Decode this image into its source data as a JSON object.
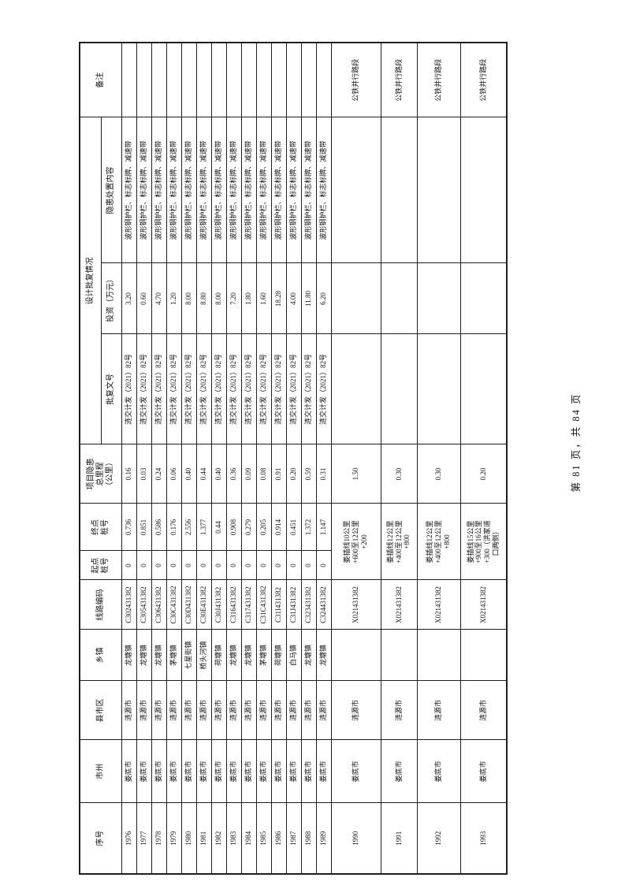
{
  "page": {
    "footer": "第 81 页，共 84 页"
  },
  "table": {
    "headers": {
      "xuhao": "序号",
      "shizhou": "市州",
      "xianshiqu": "县市区",
      "xiangzhen": "乡镇",
      "xianlu": "线路编码",
      "qidian": "起点\n桩号",
      "zhongdian": "终点\n桩号",
      "licheng": "项目隐患\n总里程\n（公里）",
      "sheji": "设计批复情况",
      "pifu": "批复文号",
      "touzi": "投资（万元）",
      "yinhuan": "隐患处置内容",
      "beizhu": "备注"
    },
    "rows": [
      {
        "no": "1976",
        "city": "娄底市",
        "county": "涟源市",
        "town": "龙塘镇",
        "code": "C302431382",
        "start": "0",
        "end": "0.736",
        "mileage": "0.16",
        "doc": "涟交计发（2021）82号",
        "invest": "3.20",
        "content": "波形钢护栏、标志标牌、减速带",
        "note": ""
      },
      {
        "no": "1977",
        "city": "娄底市",
        "county": "涟源市",
        "town": "龙塘镇",
        "code": "C305431382",
        "start": "0",
        "end": "0.851",
        "mileage": "0.03",
        "doc": "涟交计发（2021）82号",
        "invest": "0.60",
        "content": "波形钢护栏、标志标牌、减速带",
        "note": ""
      },
      {
        "no": "1978",
        "city": "娄底市",
        "county": "涟源市",
        "town": "龙塘镇",
        "code": "C306431382",
        "start": "0",
        "end": "0.586",
        "mileage": "0.24",
        "doc": "涟交计发（2021）82号",
        "invest": "4.70",
        "content": "波形钢护栏、标志标牌、减速带",
        "note": ""
      },
      {
        "no": "1979",
        "city": "娄底市",
        "county": "涟源市",
        "town": "茅塘镇",
        "code": "C30C431382",
        "start": "0",
        "end": "0.176",
        "mileage": "0.06",
        "doc": "涟交计发（2021）82号",
        "invest": "1.20",
        "content": "波形钢护栏、标志标牌、减速带",
        "note": ""
      },
      {
        "no": "1980",
        "city": "娄底市",
        "county": "涟源市",
        "town": "七星街镇",
        "code": "C30D431382",
        "start": "0",
        "end": "2.556",
        "mileage": "0.40",
        "doc": "涟交计发（2021）82号",
        "invest": "8.00",
        "content": "波形钢护栏、标志标牌、减速带",
        "note": ""
      },
      {
        "no": "1981",
        "city": "娄底市",
        "county": "涟源市",
        "town": "桥头河镇",
        "code": "C30E431382",
        "start": "0",
        "end": "1.377",
        "mileage": "0.44",
        "doc": "涟交计发（2021）82号",
        "invest": "8.80",
        "content": "波形钢护栏、标志标牌、减速带",
        "note": ""
      },
      {
        "no": "1982",
        "city": "娄底市",
        "county": "涟源市",
        "town": "荷塘镇",
        "code": "C30J431382",
        "start": "0",
        "end": "0.44",
        "mileage": "0.40",
        "doc": "涟交计发（2021）82号",
        "invest": "8.00",
        "content": "波形钢护栏、标志标牌、减速带",
        "note": ""
      },
      {
        "no": "1983",
        "city": "娄底市",
        "county": "涟源市",
        "town": "龙塘镇",
        "code": "C316431382",
        "start": "0",
        "end": "0.908",
        "mileage": "0.36",
        "doc": "涟交计发（2021）82号",
        "invest": "7.20",
        "content": "波形钢护栏、标志标牌、减速带",
        "note": ""
      },
      {
        "no": "1984",
        "city": "娄底市",
        "county": "涟源市",
        "town": "龙塘镇",
        "code": "C317431382",
        "start": "0",
        "end": "0.279",
        "mileage": "0.09",
        "doc": "涟交计发（2021）82号",
        "invest": "1.80",
        "content": "波形钢护栏、标志标牌、减速带",
        "note": ""
      },
      {
        "no": "1985",
        "city": "娄底市",
        "county": "涟源市",
        "town": "茅塘镇",
        "code": "C31C431382",
        "start": "0",
        "end": "0.205",
        "mileage": "0.08",
        "doc": "涟交计发（2021）82号",
        "invest": "1.60",
        "content": "波形钢护栏、标志标牌、减速带",
        "note": ""
      },
      {
        "no": "1986",
        "city": "娄底市",
        "county": "涟源市",
        "town": "荷塘镇",
        "code": "C31I431382",
        "start": "0",
        "end": "0.914",
        "mileage": "0.91",
        "doc": "涟交计发（2021）82号",
        "invest": "18.28",
        "content": "波形钢护栏、标志标牌、减速带",
        "note": ""
      },
      {
        "no": "1987",
        "city": "娄底市",
        "county": "涟源市",
        "town": "白马镇",
        "code": "C31J431382",
        "start": "0",
        "end": "0.451",
        "mileage": "0.20",
        "doc": "涟交计发（2021）82号",
        "invest": "4.00",
        "content": "波形钢护栏、标志标牌、减速带",
        "note": ""
      },
      {
        "no": "1988",
        "city": "娄底市",
        "county": "涟源市",
        "town": "龙塘镇",
        "code": "C323431382",
        "start": "0",
        "end": "1.372",
        "mileage": "0.59",
        "doc": "涟交计发（2021）82号",
        "invest": "11.80",
        "content": "波形钢护栏、标志标牌、减速带",
        "note": ""
      },
      {
        "no": "1989",
        "city": "娄底市",
        "county": "涟源市",
        "town": "龙塘镇",
        "code": "C324431382",
        "start": "0",
        "end": "1.147",
        "mileage": "0.31",
        "doc": "涟交计发（2021）82号",
        "invest": "6.20",
        "content": "波形钢护栏、标志标牌、减速带",
        "note": ""
      },
      {
        "no": "1990",
        "city": "娄底市",
        "county": "涟源市",
        "town": "",
        "code": "X021431382",
        "chainage": "娄插线10公里\n+600至12公里\n+200",
        "mileage": "1.50",
        "doc": "",
        "invest": "",
        "content": "",
        "note": "公铁并行路段"
      },
      {
        "no": "1991",
        "city": "娄底市",
        "county": "涟源市",
        "town": "",
        "code": "X021431382",
        "chainage": "娄插线12公里\n+400至12公里\n+800",
        "mileage": "0.30",
        "doc": "",
        "invest": "",
        "content": "",
        "note": "公铁并行路段"
      },
      {
        "no": "1992",
        "city": "娄底市",
        "county": "涟源市",
        "town": "",
        "code": "X021431382",
        "chainage": "娄插线12公里\n+400至12公里\n+800",
        "mileage": "0.30",
        "doc": "",
        "invest": "",
        "content": "",
        "note": "公铁并行路段"
      },
      {
        "no": "1993",
        "city": "娄底市",
        "county": "涟源市",
        "town": "",
        "code": "X021431382",
        "chainage": "娄插线15公里\n+900至16公里\n+300（洪家道\n口两侧）",
        "mileage": "0.20",
        "doc": "",
        "invest": "",
        "content": "",
        "note": "公铁并行路段"
      }
    ]
  }
}
